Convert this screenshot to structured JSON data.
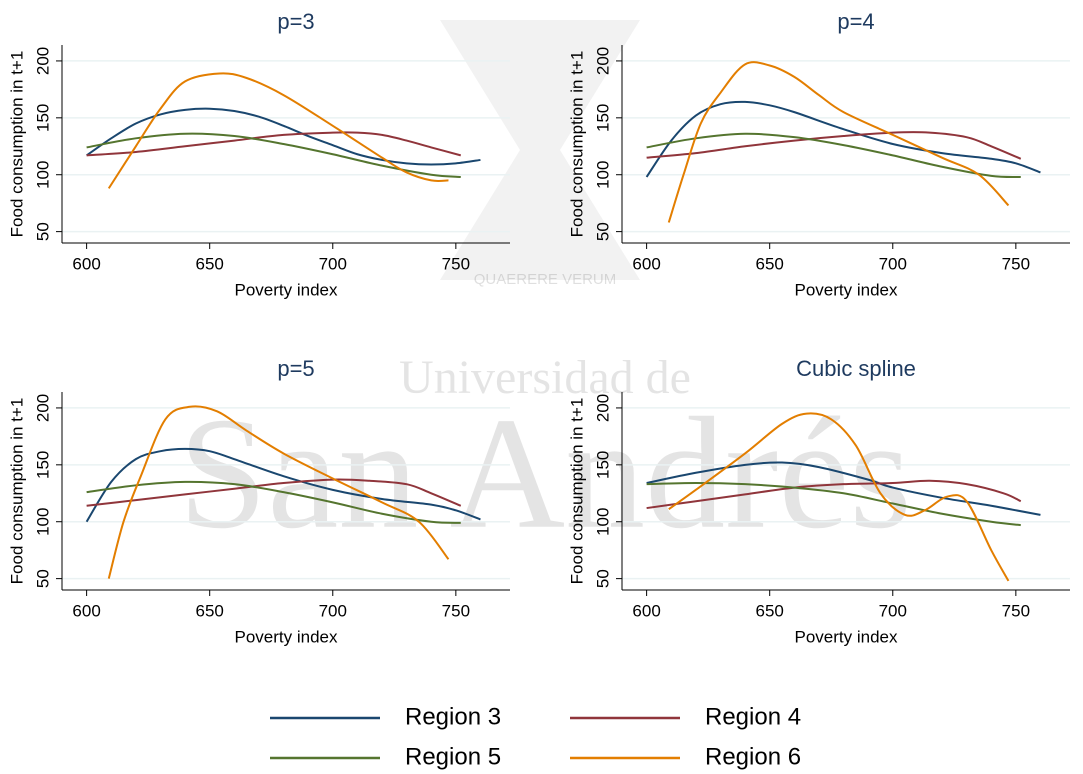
{
  "watermark": {
    "lines": [
      "Universidad de",
      "San Andrés"
    ],
    "motto": "QUAERERE VERUM"
  },
  "chart_data": [
    {
      "type": "line",
      "title": "p=3",
      "x_label": "Poverty index",
      "y_label": "Food consumption in t+1",
      "xlim": [
        590,
        772
      ],
      "ylim": [
        40,
        214
      ],
      "xticks": [
        600,
        650,
        700,
        750
      ],
      "yticks": [
        50,
        100,
        150,
        200
      ],
      "grid": true,
      "legend": "bottom",
      "series": [
        {
          "name": "Region 3",
          "color": "#1a476f",
          "x": [
            600,
            610,
            620,
            630,
            640,
            650,
            660,
            670,
            680,
            690,
            700,
            710,
            720,
            730,
            740,
            750,
            760
          ],
          "values": [
            117,
            132,
            145,
            153,
            157,
            158,
            156,
            151,
            143,
            134,
            126,
            118,
            113,
            110,
            109,
            110,
            113
          ]
        },
        {
          "name": "Region 4",
          "color": "#90353b",
          "x": [
            600,
            620,
            640,
            660,
            680,
            700,
            710,
            720,
            730,
            740,
            752
          ],
          "values": [
            117,
            120,
            125,
            130,
            135,
            137,
            137,
            135,
            130,
            124,
            117
          ]
        },
        {
          "name": "Region 5",
          "color": "#55752f",
          "x": [
            600,
            620,
            640,
            660,
            680,
            700,
            720,
            740,
            752
          ],
          "values": [
            124,
            132,
            136,
            134,
            127,
            118,
            108,
            100,
            98
          ]
        },
        {
          "name": "Region 6",
          "color": "#e37e00",
          "x": [
            609,
            620,
            630,
            640,
            654,
            665,
            680,
            700,
            720,
            730,
            740,
            747
          ],
          "values": [
            88,
            125,
            158,
            182,
            189,
            185,
            170,
            143,
            115,
            102,
            95,
            95
          ]
        }
      ]
    },
    {
      "type": "line",
      "title": "p=4",
      "x_label": "Poverty index",
      "y_label": "Food consumption in t+1",
      "xlim": [
        590,
        772
      ],
      "ylim": [
        40,
        214
      ],
      "xticks": [
        600,
        650,
        700,
        750
      ],
      "yticks": [
        50,
        100,
        150,
        200
      ],
      "grid": true,
      "series": [
        {
          "name": "Region 3",
          "color": "#1a476f",
          "x": [
            600,
            610,
            620,
            630,
            640,
            650,
            660,
            680,
            700,
            720,
            740,
            750,
            760
          ],
          "values": [
            98,
            130,
            152,
            162,
            164,
            161,
            155,
            140,
            127,
            119,
            114,
            110,
            102
          ]
        },
        {
          "name": "Region 4",
          "color": "#90353b",
          "x": [
            600,
            620,
            640,
            660,
            680,
            700,
            715,
            730,
            740,
            752
          ],
          "values": [
            115,
            119,
            125,
            130,
            134,
            137,
            137,
            133,
            125,
            114
          ]
        },
        {
          "name": "Region 5",
          "color": "#55752f",
          "x": [
            600,
            620,
            640,
            660,
            680,
            700,
            720,
            740,
            752
          ],
          "values": [
            124,
            132,
            136,
            133,
            126,
            117,
            107,
            99,
            98
          ]
        },
        {
          "name": "Region 6",
          "color": "#e37e00",
          "x": [
            609,
            615,
            622,
            630,
            640,
            650,
            660,
            670,
            680,
            700,
            720,
            735,
            747
          ],
          "values": [
            58,
            100,
            145,
            172,
            197,
            196,
            186,
            170,
            155,
            135,
            115,
            100,
            73
          ]
        }
      ]
    },
    {
      "type": "line",
      "title": "p=5",
      "x_label": "Poverty index",
      "y_label": "Food consumption in t+1",
      "xlim": [
        590,
        772
      ],
      "ylim": [
        40,
        214
      ],
      "xticks": [
        600,
        650,
        700,
        750
      ],
      "yticks": [
        50,
        100,
        150,
        200
      ],
      "grid": true,
      "series": [
        {
          "name": "Region 3",
          "color": "#1a476f",
          "x": [
            600,
            610,
            620,
            630,
            640,
            650,
            660,
            680,
            700,
            720,
            740,
            750,
            760
          ],
          "values": [
            100,
            135,
            155,
            162,
            164,
            162,
            155,
            140,
            128,
            120,
            115,
            110,
            102
          ]
        },
        {
          "name": "Region 4",
          "color": "#90353b",
          "x": [
            600,
            620,
            640,
            660,
            680,
            700,
            715,
            730,
            740,
            752
          ],
          "values": [
            114,
            119,
            124,
            129,
            134,
            137,
            136,
            133,
            125,
            114
          ]
        },
        {
          "name": "Region 5",
          "color": "#55752f",
          "x": [
            600,
            620,
            640,
            660,
            680,
            700,
            720,
            740,
            752
          ],
          "values": [
            126,
            132,
            135,
            133,
            126,
            117,
            107,
            100,
            99
          ]
        },
        {
          "name": "Region 6",
          "color": "#e37e00",
          "x": [
            609,
            615,
            622,
            632,
            642,
            653,
            665,
            680,
            700,
            720,
            735,
            747
          ],
          "values": [
            50,
            100,
            140,
            190,
            201,
            197,
            180,
            160,
            138,
            117,
            100,
            67
          ]
        }
      ]
    },
    {
      "type": "line",
      "title": "Cubic spline",
      "x_label": "Poverty index",
      "y_label": "Food consumption in t+1",
      "xlim": [
        590,
        772
      ],
      "ylim": [
        40,
        214
      ],
      "xticks": [
        600,
        650,
        700,
        750
      ],
      "yticks": [
        50,
        100,
        150,
        200
      ],
      "grid": true,
      "series": [
        {
          "name": "Region 3",
          "color": "#1a476f",
          "x": [
            600,
            620,
            640,
            655,
            670,
            690,
            700,
            720,
            740,
            760
          ],
          "values": [
            134,
            143,
            150,
            152,
            148,
            137,
            130,
            121,
            114,
            106
          ]
        },
        {
          "name": "Region 4",
          "color": "#90353b",
          "x": [
            600,
            620,
            640,
            660,
            680,
            700,
            715,
            730,
            745,
            752
          ],
          "values": [
            112,
            118,
            124,
            130,
            133,
            134,
            136,
            133,
            125,
            118
          ]
        },
        {
          "name": "Region 5",
          "color": "#55752f",
          "x": [
            600,
            620,
            640,
            660,
            680,
            700,
            720,
            740,
            752
          ],
          "values": [
            133,
            134,
            133,
            130,
            125,
            116,
            107,
            100,
            97
          ]
        },
        {
          "name": "Region 6",
          "color": "#e37e00",
          "x": [
            609,
            620,
            640,
            655,
            665,
            675,
            685,
            695,
            705,
            713,
            722,
            730,
            740,
            747
          ],
          "values": [
            111,
            128,
            160,
            186,
            195,
            190,
            167,
            125,
            106,
            110,
            122,
            118,
            75,
            48
          ]
        }
      ]
    }
  ]
}
